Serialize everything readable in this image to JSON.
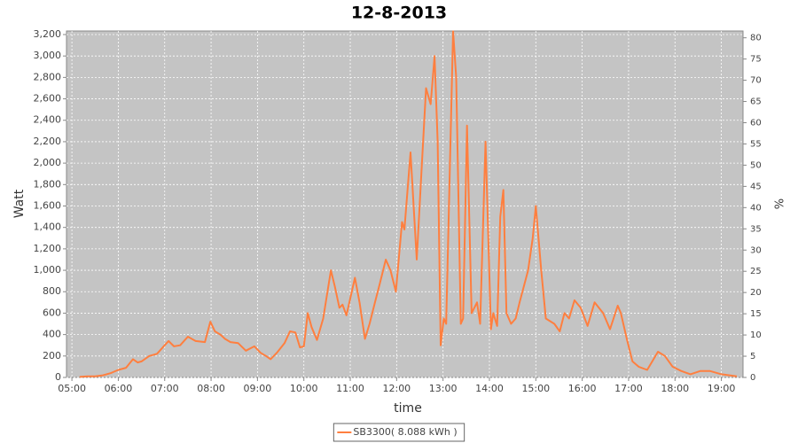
{
  "chart_data": {
    "type": "line",
    "title": "12-8-2013",
    "x_label": "time",
    "y_label": "Watt",
    "y2_label": "%",
    "x": [
      "05:10",
      "05:20",
      "05:30",
      "05:40",
      "05:50",
      "06:00",
      "06:10",
      "06:19",
      "06:25",
      "06:30",
      "06:40",
      "06:50",
      "07:00",
      "07:05",
      "07:12",
      "07:20",
      "07:30",
      "07:40",
      "07:52",
      "07:59",
      "08:05",
      "08:12",
      "08:18",
      "08:25",
      "08:35",
      "08:45",
      "08:56",
      "09:04",
      "09:11",
      "09:17",
      "09:25",
      "09:35",
      "09:42",
      "09:49",
      "09:55",
      "10:00",
      "10:05",
      "10:10",
      "10:17",
      "10:25",
      "10:35",
      "10:40",
      "10:46",
      "10:50",
      "10:55",
      "11:06",
      "11:12",
      "11:19",
      "11:25",
      "11:32",
      "11:38",
      "11:46",
      "11:52",
      "11:59",
      "12:07",
      "12:10",
      "12:18",
      "12:26",
      "12:32",
      "12:38",
      "12:44",
      "12:49",
      "12:53",
      "12:57",
      "13:01",
      "13:04",
      "13:13",
      "13:17",
      "13:23",
      "13:26",
      "13:31",
      "13:37",
      "13:44",
      "13:48",
      "13:55",
      "14:02",
      "14:05",
      "14:10",
      "14:14",
      "14:18",
      "14:22",
      "14:28",
      "14:34",
      "14:39",
      "14:50",
      "14:56",
      "15:00",
      "15:07",
      "15:13",
      "15:24",
      "15:31",
      "15:37",
      "15:43",
      "15:50",
      "15:58",
      "16:07",
      "16:16",
      "16:27",
      "16:36",
      "16:46",
      "16:50",
      "16:58",
      "17:05",
      "17:13",
      "17:24",
      "17:38",
      "17:47",
      "17:57",
      "18:08",
      "18:20",
      "18:33",
      "18:45",
      "19:00",
      "19:20"
    ],
    "series": [
      {
        "name": "SB3300( 8.088 kWh )",
        "color": "#ff7f3f",
        "values": [
          5,
          10,
          10,
          20,
          40,
          70,
          90,
          170,
          140,
          150,
          200,
          220,
          300,
          340,
          290,
          300,
          380,
          340,
          330,
          520,
          430,
          400,
          360,
          330,
          320,
          250,
          290,
          230,
          200,
          170,
          230,
          320,
          430,
          420,
          280,
          290,
          600,
          470,
          350,
          550,
          1000,
          850,
          650,
          680,
          580,
          930,
          700,
          360,
          500,
          700,
          870,
          1100,
          1000,
          800,
          1450,
          1380,
          2100,
          1100,
          1900,
          2700,
          2550,
          3000,
          2200,
          300,
          550,
          500,
          3230,
          2800,
          500,
          550,
          2350,
          600,
          700,
          500,
          2200,
          450,
          600,
          480,
          1500,
          1750,
          600,
          500,
          550,
          700,
          1000,
          1300,
          1600,
          1000,
          550,
          500,
          430,
          600,
          550,
          720,
          650,
          480,
          700,
          600,
          450,
          670,
          600,
          350,
          150,
          100,
          70,
          240,
          200,
          100,
          60,
          30,
          60,
          60,
          30,
          10
        ]
      }
    ],
    "xlim": [
      "04:53",
      "19:28"
    ],
    "xticks": [
      "05:00",
      "06:00",
      "07:00",
      "08:00",
      "09:00",
      "10:00",
      "11:00",
      "12:00",
      "13:00",
      "14:00",
      "15:00",
      "16:00",
      "17:00",
      "18:00",
      "19:00"
    ],
    "ylim": [
      0,
      3233
    ],
    "yticks": [
      0,
      200,
      400,
      600,
      800,
      {
        "value": 1000,
        "label": "1,000"
      },
      {
        "value": 1200,
        "label": "1,200"
      },
      {
        "value": 1400,
        "label": "1,400"
      },
      {
        "value": 1600,
        "label": "1,600"
      },
      {
        "value": 1800,
        "label": "1,800"
      },
      {
        "value": 2000,
        "label": "2,000"
      },
      {
        "value": 2200,
        "label": "2,200"
      },
      {
        "value": 2400,
        "label": "2,400"
      },
      {
        "value": 2600,
        "label": "2,600"
      },
      {
        "value": 2800,
        "label": "2,800"
      },
      {
        "value": 3000,
        "label": "3,000"
      },
      {
        "value": 3200,
        "label": "3,200"
      }
    ],
    "y2lim": [
      0,
      81.6
    ],
    "y2ticks": [
      0,
      5,
      10,
      15,
      20,
      25,
      30,
      35,
      40,
      45,
      50,
      55,
      60,
      65,
      70,
      75,
      80
    ],
    "grid": true,
    "legend": "bottom",
    "plot_background": "#c4c4c4"
  }
}
